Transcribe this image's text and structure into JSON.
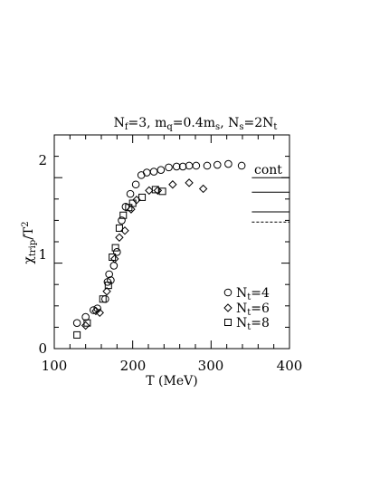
{
  "chart_data": {
    "type": "scatter",
    "title": "N_f=3, m_q=0.4m_s, N_s=2N_t",
    "title_parts": {
      "a": "N",
      "a_sub": "f",
      "b": "=3,  m",
      "b_sub": "q",
      "c": "=0.4m",
      "c_sub": "s",
      "d": ",  N",
      "d_sub": "s",
      "e": "=2N",
      "e_sub": "t"
    },
    "xlabel": "T (MeV)",
    "ylabel": {
      "main": "χ",
      "sub": "trip",
      "rest": "/T",
      "sup": "2"
    },
    "xlim": [
      100,
      400
    ],
    "ylim": [
      0,
      2.5
    ],
    "x_ticks": [
      "100",
      "200",
      "300",
      "400"
    ],
    "y_ticks": [
      "0",
      "1",
      "2"
    ],
    "grid": false,
    "legend_placement": "bottom-right",
    "series": [
      {
        "name": "N_t=4",
        "name_main": "N",
        "name_sub": "t",
        "name_rest": "=4",
        "marker": "circle",
        "x": [
          129,
          140,
          150,
          155,
          165,
          168,
          170,
          172,
          176,
          180,
          186,
          191,
          197,
          204,
          211,
          218,
          227,
          236,
          246,
          256,
          264,
          272,
          281,
          295,
          308,
          322,
          339
        ],
        "y": [
          0.3,
          0.37,
          0.45,
          0.47,
          0.58,
          0.78,
          0.87,
          0.8,
          0.97,
          1.13,
          1.5,
          1.66,
          1.81,
          1.92,
          2.03,
          2.06,
          2.07,
          2.09,
          2.12,
          2.13,
          2.13,
          2.14,
          2.14,
          2.14,
          2.15,
          2.16,
          2.14
        ]
      },
      {
        "name": "N_t=6",
        "name_main": "N",
        "name_sub": "t",
        "name_rest": "=6",
        "marker": "diamond",
        "x": [
          140,
          153,
          158,
          167,
          177,
          183,
          190,
          198,
          205,
          221,
          232,
          251,
          272,
          290
        ],
        "y": [
          0.27,
          0.44,
          0.42,
          0.67,
          1.05,
          1.3,
          1.38,
          1.63,
          1.74,
          1.85,
          1.85,
          1.92,
          1.94,
          1.87
        ]
      },
      {
        "name": "N_t=8",
        "name_main": "N",
        "name_sub": "t",
        "name_rest": "=8",
        "marker": "square",
        "x": [
          129,
          142,
          162,
          169,
          174,
          178,
          183,
          188,
          195,
          200,
          212,
          229,
          238
        ],
        "y": [
          0.16,
          0.3,
          0.58,
          0.74,
          1.07,
          1.18,
          1.41,
          1.56,
          1.65,
          1.7,
          1.77,
          1.86,
          1.84
        ]
      }
    ],
    "continuum_label": "cont",
    "continuum_lines": [
      {
        "y": 2.0,
        "style": "solid"
      },
      {
        "y": 1.83,
        "style": "solid"
      },
      {
        "y": 1.6,
        "style": "solid"
      },
      {
        "y": 1.48,
        "style": "dashed"
      }
    ]
  }
}
